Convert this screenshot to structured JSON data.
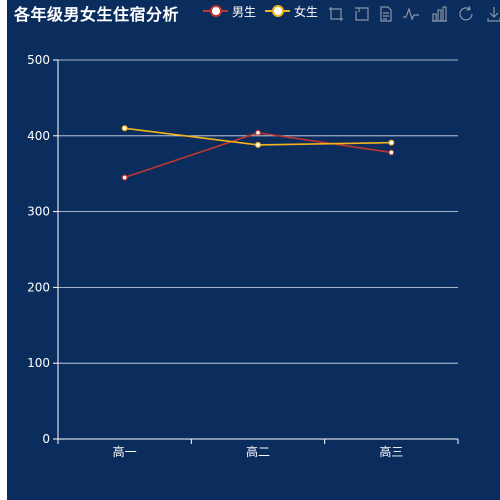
{
  "title": "各年级男女生住宿分析",
  "legend": [
    {
      "name": "男生",
      "color": "#c23531"
    },
    {
      "name": "女生",
      "color": "#f5b31a"
    }
  ],
  "toolbox_icons": [
    "rect-select-icon",
    "lasso-select-icon",
    "data-view-icon",
    "line-chart-icon",
    "bar-chart-icon",
    "restore-icon",
    "save-image-icon"
  ],
  "colors": {
    "background": "#0b2d5e",
    "axis": "#ffffff",
    "grid": "#ffffff",
    "toolbox": "#8a94a6"
  },
  "chart_data": {
    "type": "line",
    "title": "各年级男女生住宿分析",
    "categories": [
      "高一",
      "高二",
      "高三"
    ],
    "series": [
      {
        "name": "男生",
        "values": [
          345,
          404,
          378
        ],
        "color": "#c23531"
      },
      {
        "name": "女生",
        "values": [
          410,
          388,
          391
        ],
        "color": "#f5b31a"
      }
    ],
    "yticks": [
      0,
      100,
      200,
      300,
      400,
      500
    ],
    "ylim": [
      0,
      500
    ],
    "grid": true,
    "legend_position": "top"
  }
}
